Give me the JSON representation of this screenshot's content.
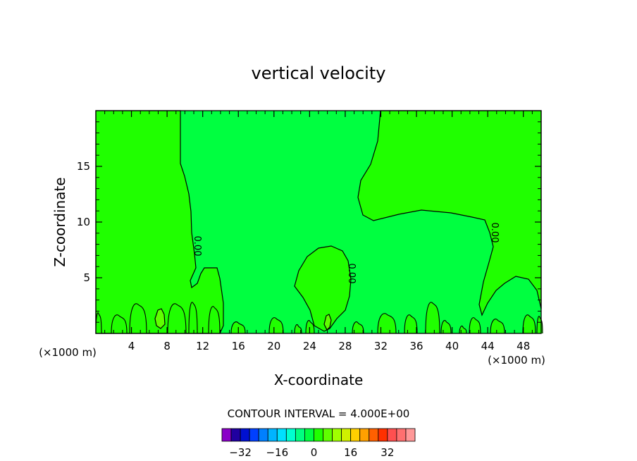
{
  "chart_data": {
    "type": "heatmap",
    "title": "vertical velocity",
    "xlabel": "X-coordinate",
    "ylabel": "Z-coordinate",
    "x_unit_label": "(×1000 m)",
    "x_unit_label_right": "(×1000 m)",
    "xlim": [
      0,
      50
    ],
    "ylim": [
      0,
      20
    ],
    "x_ticks": [
      4,
      8,
      12,
      16,
      20,
      24,
      28,
      32,
      36,
      40,
      44,
      48
    ],
    "y_ticks": [
      5,
      10,
      15
    ],
    "contour_interval_text": "CONTOUR INTERVAL = 4.000E+00",
    "contour_labels": [
      "0.00",
      "0.00",
      "0.00"
    ],
    "colorbar": {
      "colors": [
        "#8a00c8",
        "#2000a0",
        "#0010d0",
        "#0040ff",
        "#0080ff",
        "#00b4ff",
        "#00e0ff",
        "#00ffd0",
        "#00ff80",
        "#00ff40",
        "#20ff00",
        "#60ff00",
        "#a0ff00",
        "#d0f000",
        "#ffd000",
        "#ffa000",
        "#ff6000",
        "#ff3000",
        "#ff5050",
        "#ff7070",
        "#ff9898"
      ],
      "tick_labels": [
        "−32",
        "−16",
        "0",
        "16",
        "32"
      ],
      "tick_values": [
        -32,
        -16,
        0,
        16,
        32
      ],
      "range": [
        -40,
        44
      ]
    },
    "fill_colors": {
      "zero_band": "#00ff40",
      "positive_band": "#20ff00",
      "strong_positive": "#60ff00"
    }
  }
}
